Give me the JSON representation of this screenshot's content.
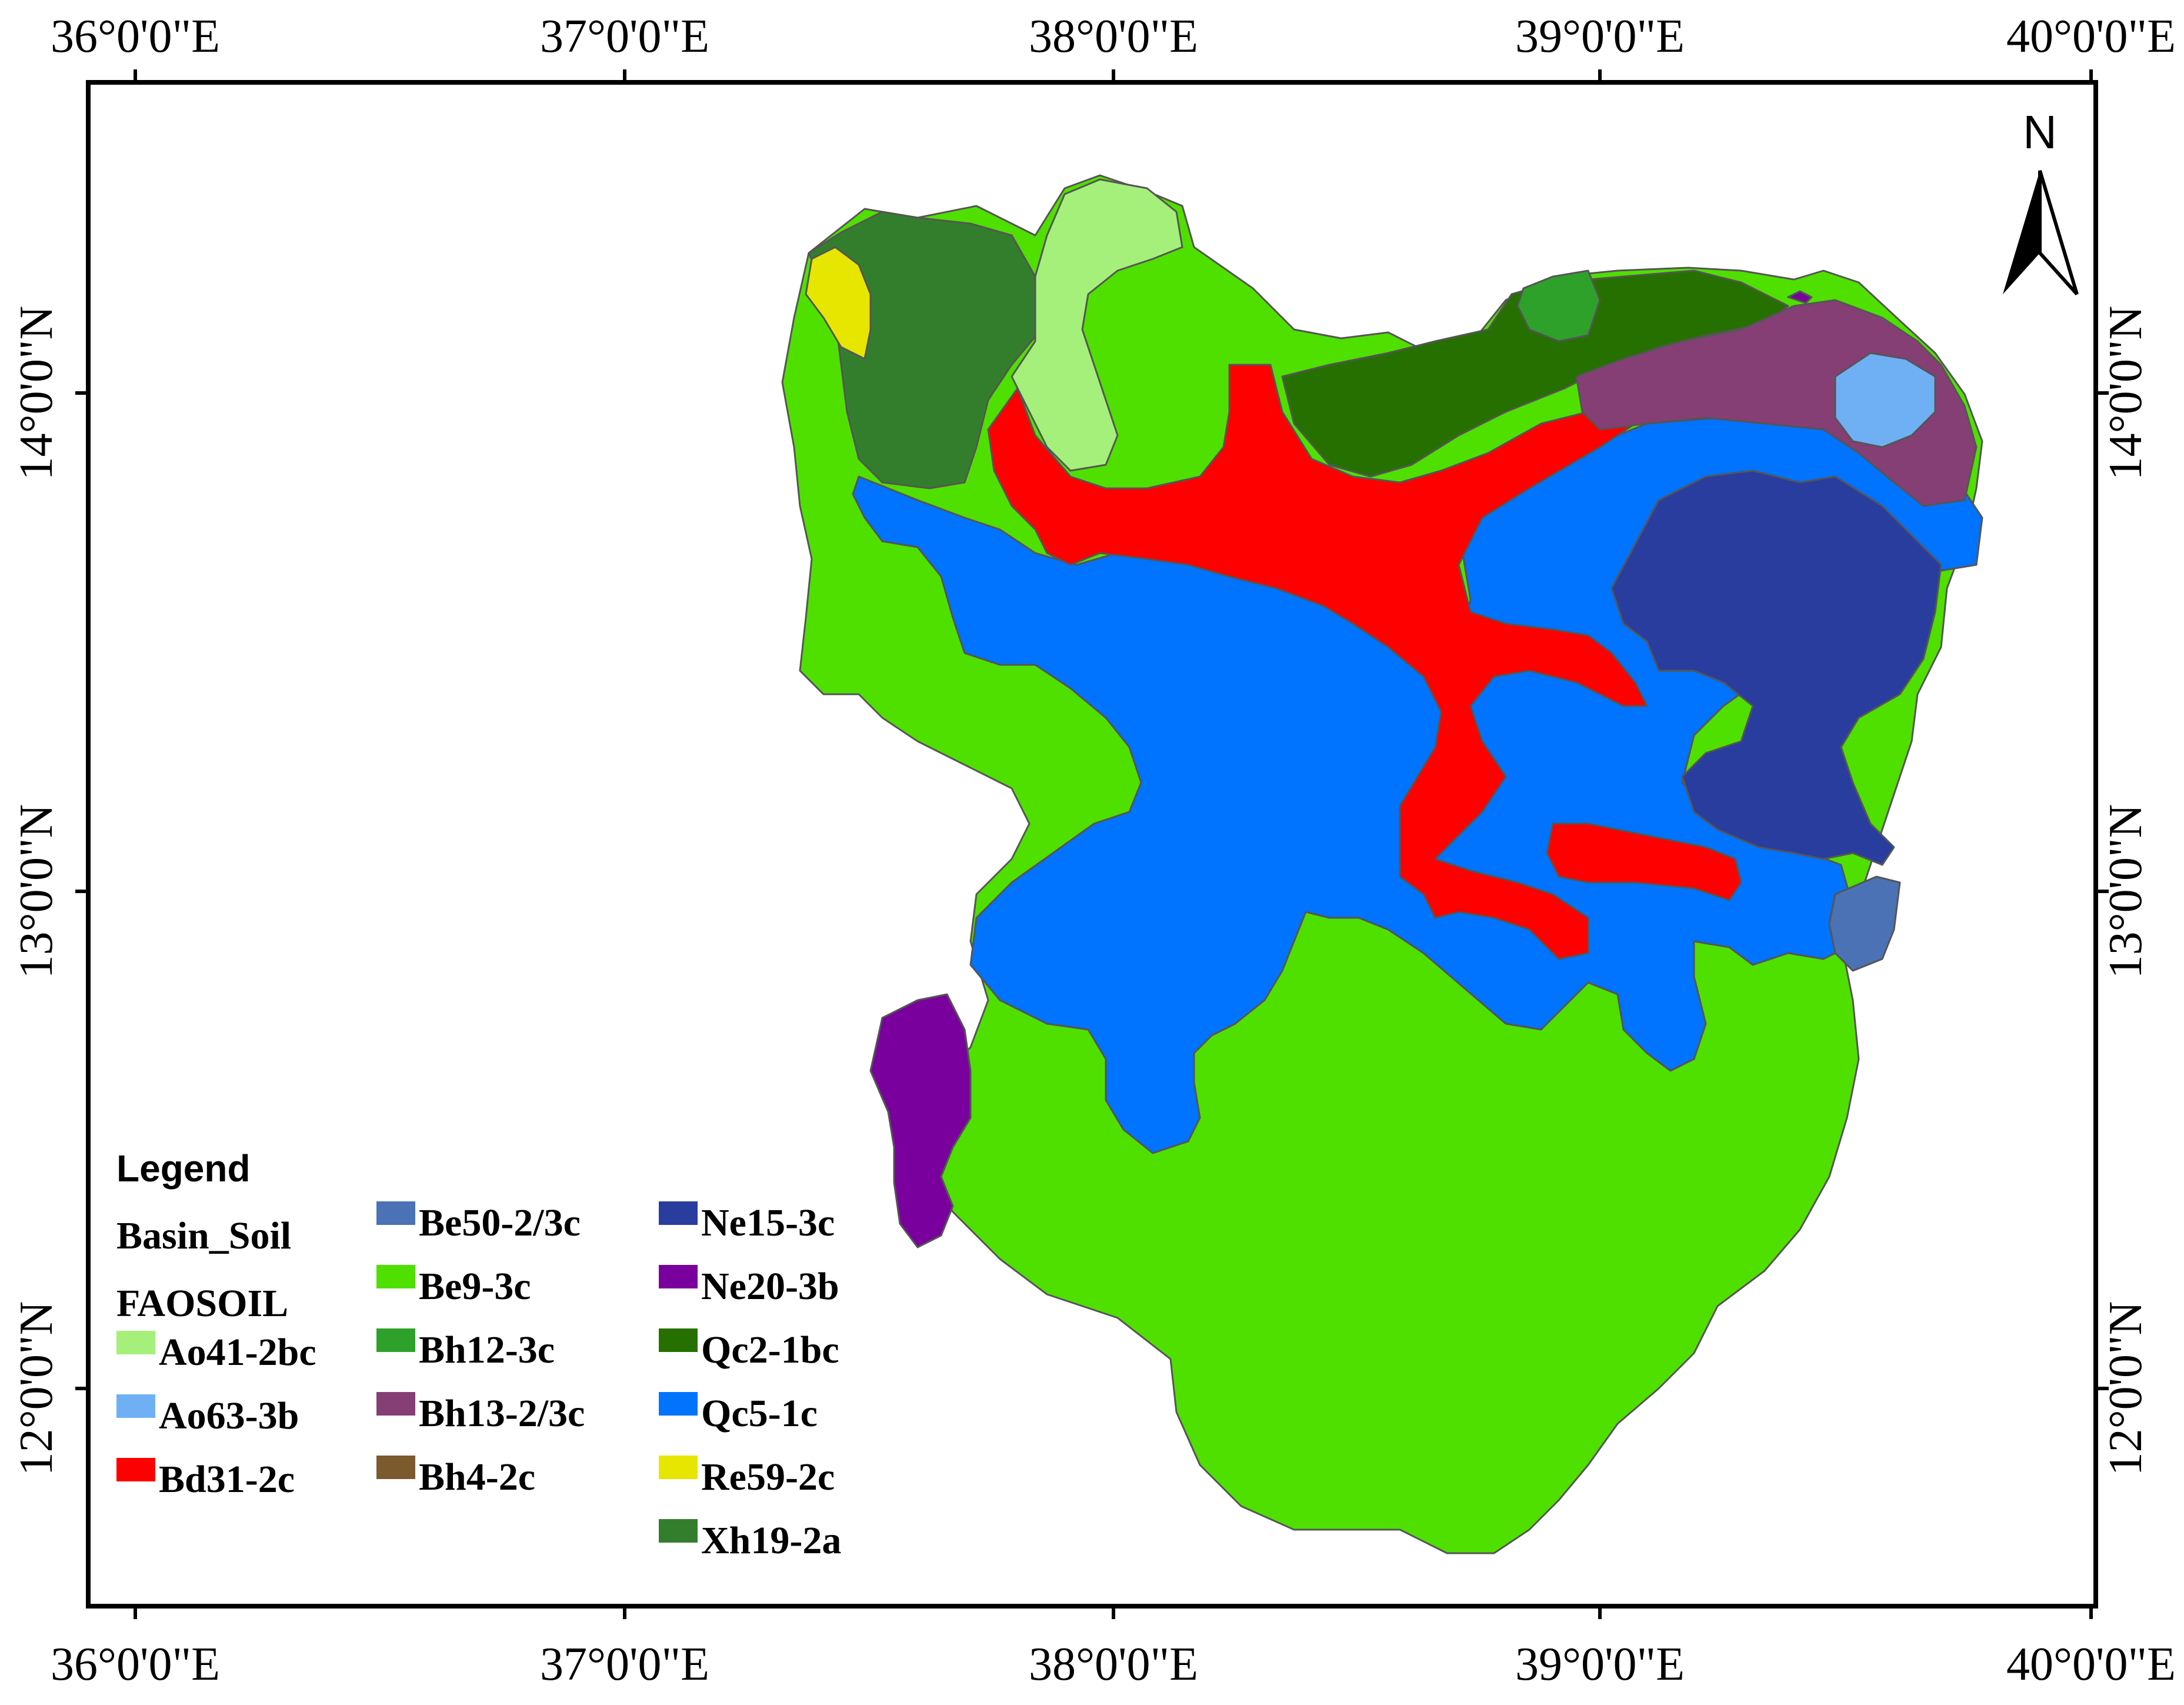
{
  "map": {
    "top_lon_labels": [
      "36°0'0\"E",
      "37°0'0\"E",
      "38°0'0\"E",
      "39°0'0\"E",
      "40°0'0\"E"
    ],
    "bottom_lon_labels": [
      "36°0'0\"E",
      "37°0'0\"E",
      "38°0'0\"E",
      "39°0'0\"E",
      "40°0'0\"E"
    ],
    "left_lat_labels": [
      "14°0'0\"N",
      "13°0'0\"N",
      "12°0'0\"N"
    ],
    "right_lat_labels": [
      "14°0'0\"N",
      "13°0'0\"N",
      "12°0'0\"N"
    ],
    "north_arrow_label": "N",
    "north_arrow_icon": "north-arrow-icon"
  },
  "legend": {
    "title": "Legend",
    "layer_name": "Basin_Soil",
    "field_name": "FAOSOIL",
    "items": [
      {
        "label": "Ao41-2bc",
        "color": "#a5f07a"
      },
      {
        "label": "Ao63-3b",
        "color": "#6fb0f5"
      },
      {
        "label": "Bd31-2c",
        "color": "#ff0000"
      },
      {
        "label": "Be50-2/3c",
        "color": "#4a72b5"
      },
      {
        "label": "Be9-3c",
        "color": "#4fe000"
      },
      {
        "label": "Bh12-3c",
        "color": "#2ea12a"
      },
      {
        "label": "Bh13-2/3c",
        "color": "#853f75"
      },
      {
        "label": "Bh4-2c",
        "color": "#7b5a2e"
      },
      {
        "label": "Ne15-3c",
        "color": "#293d9e"
      },
      {
        "label": "Ne20-3b",
        "color": "#7a009e"
      },
      {
        "label": "Qc2-1bc",
        "color": "#267000"
      },
      {
        "label": "Qc5-1c",
        "color": "#0073ff"
      },
      {
        "label": "Re59-2c",
        "color": "#e6e600"
      },
      {
        "label": "Xh19-2a",
        "color": "#337e2d"
      }
    ]
  }
}
